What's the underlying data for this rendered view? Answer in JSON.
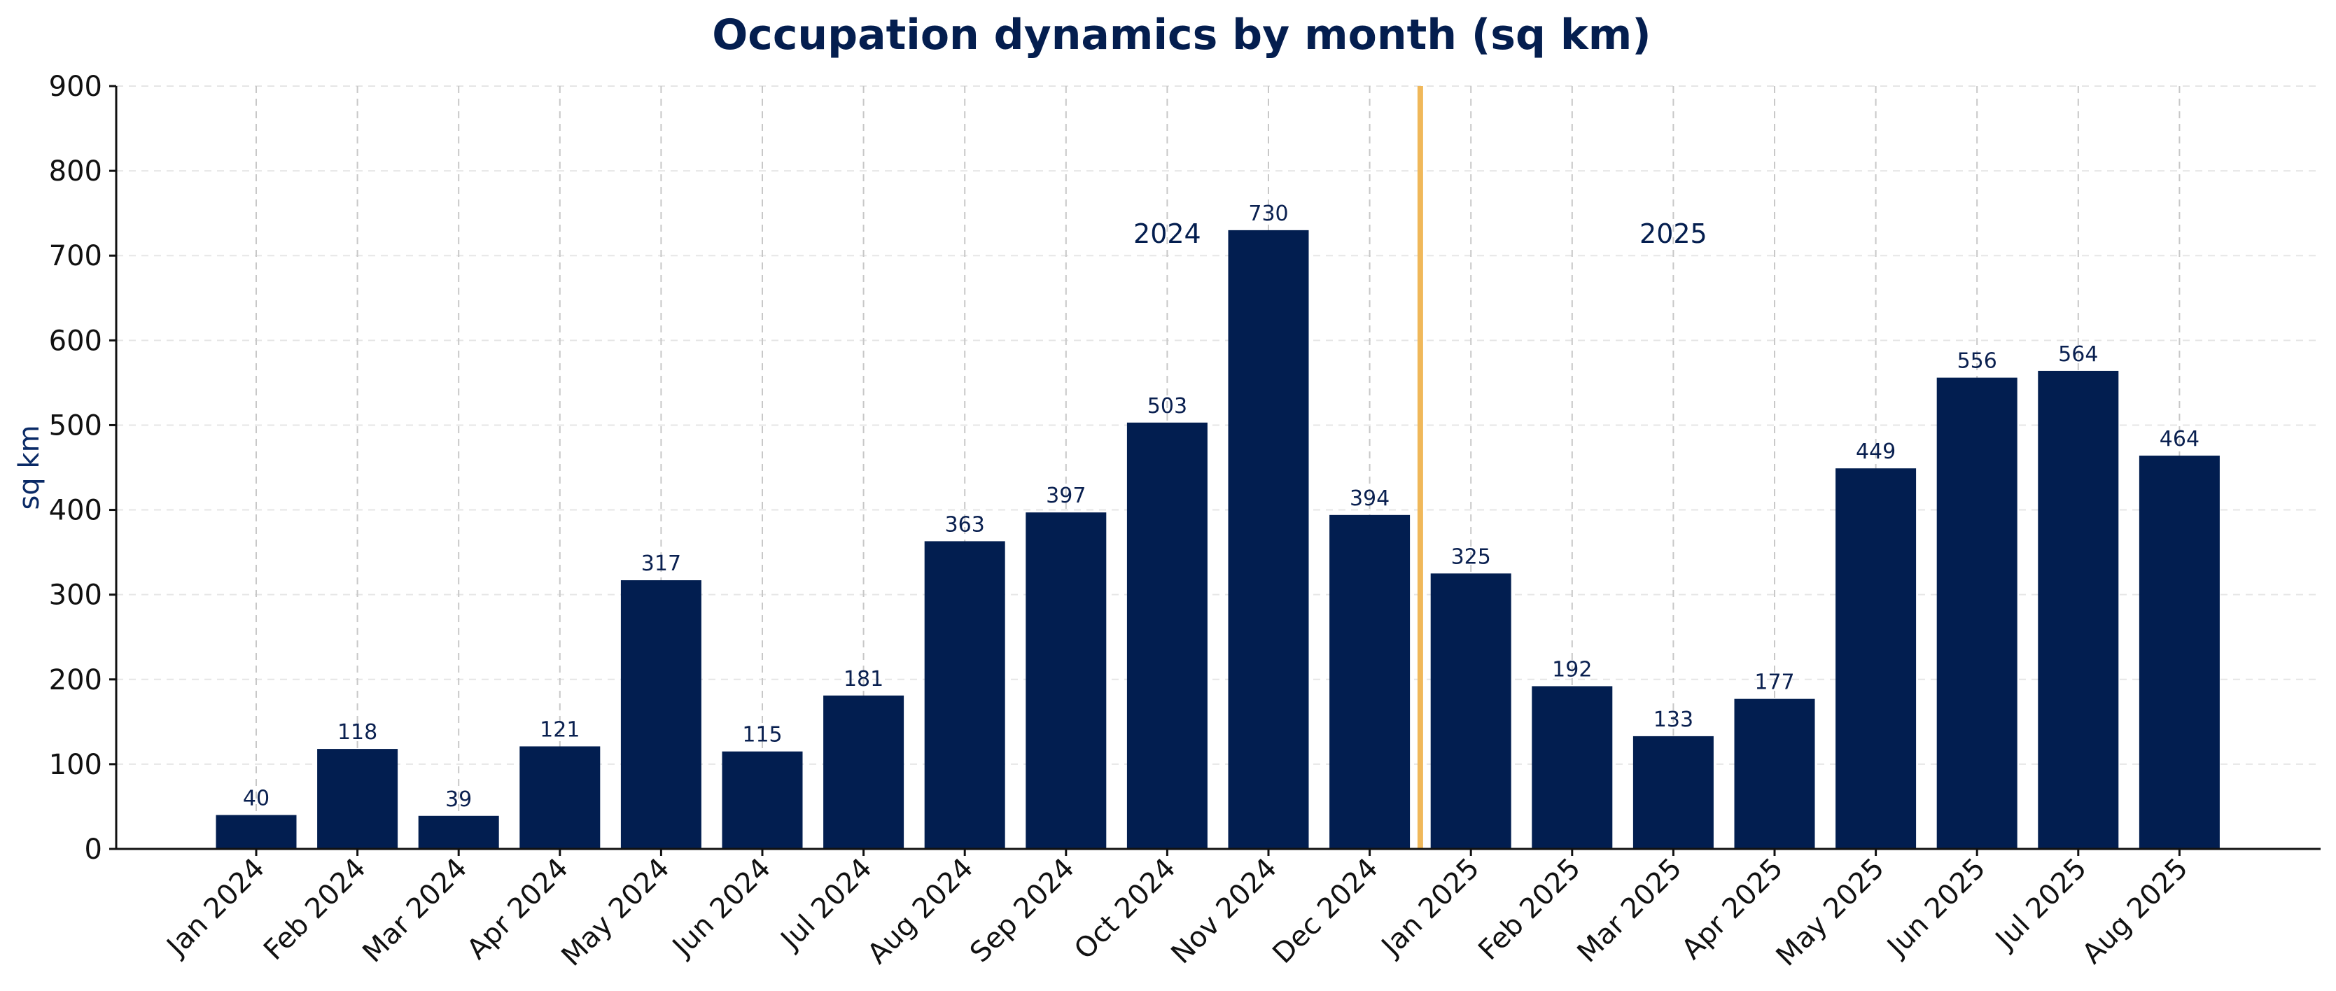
{
  "chart_data": {
    "type": "bar",
    "title": "Occupation dynamics by month (sq km)",
    "xlabel": "",
    "ylabel": "sq km",
    "ylim": [
      0,
      900
    ],
    "yticks": [
      0,
      100,
      200,
      300,
      400,
      500,
      600,
      700,
      800,
      900
    ],
    "categories": [
      "Jan 2024",
      "Feb 2024",
      "Mar 2024",
      "Apr 2024",
      "May 2024",
      "Jun 2024",
      "Jul 2024",
      "Aug 2024",
      "Sep 2024",
      "Oct 2024",
      "Nov 2024",
      "Dec 2024",
      "Jan 2025",
      "Feb 2025",
      "Mar 2025",
      "Apr 2025",
      "May 2025",
      "Jun 2025",
      "Jul 2025",
      "Aug 2025"
    ],
    "values": [
      40,
      118,
      39,
      121,
      317,
      115,
      181,
      363,
      397,
      503,
      730,
      394,
      325,
      192,
      133,
      177,
      449,
      556,
      564,
      464
    ],
    "grid": true,
    "bar_color": "#021e50",
    "divider_color": "#f0b85a",
    "annotations": [
      {
        "text": "2024",
        "x_category": "Oct 2024",
        "y": 715
      },
      {
        "text": "2025",
        "x_category": "Mar 2025",
        "y": 715
      }
    ],
    "divider_between": [
      "Dec 2024",
      "Jan 2025"
    ]
  }
}
